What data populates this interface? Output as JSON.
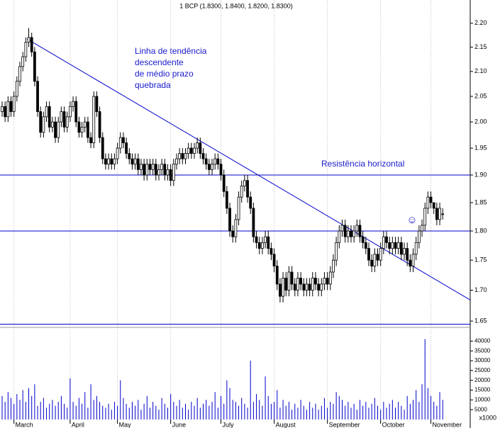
{
  "chart_data": {
    "type": "candlestick",
    "title": "1 BCP (1.8300, 1.8400, 1.8200, 1.8300)",
    "annotations": [
      "Linha de tendência",
      "descendente",
      "de médio prazo",
      "quebrada",
      "Resistência horizontal",
      "☺"
    ],
    "volume_unit_label": "x1000",
    "log_scale": true,
    "up_color": "#ffffff",
    "down_color": "#000000",
    "line_color": "#0000cc",
    "xlim": [
      -0.72,
      158.3
    ],
    "xticks": [
      {
        "value": 4,
        "label": "March"
      },
      {
        "value": 23,
        "label": "April"
      },
      {
        "value": 39,
        "label": "May"
      },
      {
        "value": 57,
        "label": "June"
      },
      {
        "value": 74,
        "label": "July"
      },
      {
        "value": 92,
        "label": "August"
      },
      {
        "value": 110,
        "label": "September"
      },
      {
        "value": 128,
        "label": "October"
      },
      {
        "value": 145,
        "label": "November"
      }
    ],
    "ylim": [
      1.64,
      2.25
    ],
    "yticks": [
      {
        "value": 1.65,
        "label": "1.65"
      },
      {
        "value": 1.7,
        "label": "1.70"
      },
      {
        "value": 1.75,
        "label": "1.75"
      },
      {
        "value": 1.8,
        "label": "1.80"
      },
      {
        "value": 1.85,
        "label": "1.85"
      },
      {
        "value": 1.9,
        "label": "1.90"
      },
      {
        "value": 1.95,
        "label": "1.95"
      },
      {
        "value": 2.0,
        "label": "2.00"
      },
      {
        "value": 2.05,
        "label": "2.05"
      },
      {
        "value": 2.1,
        "label": "2.10"
      },
      {
        "value": 2.15,
        "label": "2.15"
      },
      {
        "value": 2.2,
        "label": "2.20"
      }
    ],
    "y2lim": [
      0,
      47000
    ],
    "y2ticks": [
      5000,
      10000,
      15000,
      20000,
      25000,
      30000,
      35000,
      40000
    ],
    "hlines": [
      1.9,
      1.8,
      1.645
    ],
    "trendline": [
      [
        8.4,
        2.167
      ],
      [
        158.3,
        1.684
      ]
    ],
    "open": [
      2.02,
      2.03,
      2.01,
      2.04,
      2.02,
      2.05,
      2.08,
      2.11,
      2.13,
      2.16,
      2.17,
      2.14,
      2.08,
      2.02,
      1.98,
      2.01,
      2.03,
      1.99,
      2.0,
      1.97,
      2.0,
      2.02,
      1.99,
      2.01,
      2.03,
      2.04,
      2.0,
      1.98,
      1.99,
      2.0,
      1.97,
      1.96,
      2.05,
      2.02,
      1.97,
      1.93,
      1.92,
      1.93,
      1.92,
      1.93,
      1.95,
      1.97,
      1.96,
      1.94,
      1.93,
      1.92,
      1.93,
      1.91,
      1.92,
      1.9,
      1.92,
      1.91,
      1.92,
      1.9,
      1.91,
      1.92,
      1.9,
      1.91,
      1.89,
      1.92,
      1.93,
      1.94,
      1.93,
      1.94,
      1.95,
      1.94,
      1.95,
      1.96,
      1.94,
      1.93,
      1.92,
      1.91,
      1.92,
      1.93,
      1.92,
      1.9,
      1.87,
      1.84,
      1.8,
      1.79,
      1.82,
      1.86,
      1.88,
      1.89,
      1.86,
      1.84,
      1.79,
      1.78,
      1.77,
      1.78,
      1.79,
      1.77,
      1.76,
      1.74,
      1.71,
      1.69,
      1.72,
      1.7,
      1.73,
      1.71,
      1.7,
      1.72,
      1.71,
      1.7,
      1.71,
      1.7,
      1.72,
      1.71,
      1.7,
      1.71,
      1.72,
      1.71,
      1.73,
      1.75,
      1.78,
      1.8,
      1.81,
      1.79,
      1.8,
      1.79,
      1.8,
      1.81,
      1.79,
      1.78,
      1.77,
      1.75,
      1.74,
      1.76,
      1.75,
      1.77,
      1.79,
      1.78,
      1.77,
      1.78,
      1.77,
      1.78,
      1.76,
      1.77,
      1.75,
      1.74,
      1.76,
      1.78,
      1.8,
      1.81,
      1.84,
      1.86,
      1.85,
      1.84,
      1.82,
      1.83
    ],
    "high": [
      2.04,
      2.04,
      2.05,
      2.05,
      2.06,
      2.09,
      2.12,
      2.14,
      2.17,
      2.19,
      2.18,
      2.15,
      2.09,
      2.03,
      2.02,
      2.04,
      2.04,
      2.01,
      2.01,
      2.01,
      2.03,
      2.03,
      2.02,
      2.04,
      2.05,
      2.05,
      2.01,
      2.0,
      2.01,
      2.01,
      1.98,
      2.06,
      2.06,
      2.03,
      1.98,
      1.94,
      1.94,
      1.94,
      1.94,
      1.96,
      1.98,
      1.98,
      1.97,
      1.95,
      1.94,
      1.94,
      1.94,
      1.93,
      1.93,
      1.93,
      1.93,
      1.93,
      1.93,
      1.92,
      1.93,
      1.93,
      1.92,
      1.92,
      1.93,
      1.94,
      1.95,
      1.95,
      1.95,
      1.96,
      1.96,
      1.96,
      1.97,
      1.97,
      1.95,
      1.94,
      1.93,
      1.93,
      1.94,
      1.94,
      1.93,
      1.91,
      1.88,
      1.85,
      1.81,
      1.83,
      1.87,
      1.89,
      1.9,
      1.9,
      1.87,
      1.85,
      1.8,
      1.79,
      1.79,
      1.8,
      1.8,
      1.78,
      1.77,
      1.75,
      1.72,
      1.73,
      1.73,
      1.74,
      1.74,
      1.72,
      1.73,
      1.73,
      1.72,
      1.72,
      1.72,
      1.73,
      1.73,
      1.72,
      1.72,
      1.73,
      1.73,
      1.74,
      1.76,
      1.79,
      1.81,
      1.82,
      1.82,
      1.81,
      1.81,
      1.81,
      1.82,
      1.82,
      1.8,
      1.79,
      1.78,
      1.76,
      1.77,
      1.77,
      1.78,
      1.8,
      1.8,
      1.79,
      1.79,
      1.79,
      1.79,
      1.79,
      1.78,
      1.78,
      1.76,
      1.77,
      1.79,
      1.81,
      1.82,
      1.85,
      1.87,
      1.87,
      1.85,
      1.85,
      1.85,
      1.84
    ],
    "low": [
      2.01,
      2.0,
      2.0,
      2.01,
      2.01,
      2.04,
      2.07,
      2.1,
      2.12,
      2.15,
      2.13,
      2.07,
      2.01,
      1.97,
      1.97,
      2.0,
      1.98,
      1.98,
      1.96,
      1.96,
      1.99,
      1.98,
      1.98,
      2.0,
      2.02,
      1.99,
      1.97,
      1.97,
      1.98,
      1.96,
      1.95,
      1.95,
      2.01,
      1.96,
      1.92,
      1.91,
      1.91,
      1.91,
      1.91,
      1.92,
      1.94,
      1.95,
      1.93,
      1.92,
      1.91,
      1.91,
      1.9,
      1.9,
      1.89,
      1.89,
      1.9,
      1.9,
      1.89,
      1.89,
      1.9,
      1.89,
      1.89,
      1.88,
      1.88,
      1.91,
      1.92,
      1.92,
      1.92,
      1.93,
      1.93,
      1.93,
      1.94,
      1.93,
      1.92,
      1.91,
      1.9,
      1.9,
      1.91,
      1.91,
      1.89,
      1.86,
      1.83,
      1.79,
      1.78,
      1.78,
      1.81,
      1.85,
      1.87,
      1.85,
      1.83,
      1.78,
      1.77,
      1.76,
      1.76,
      1.77,
      1.76,
      1.75,
      1.73,
      1.7,
      1.68,
      1.68,
      1.69,
      1.69,
      1.7,
      1.69,
      1.69,
      1.7,
      1.69,
      1.69,
      1.69,
      1.69,
      1.7,
      1.69,
      1.69,
      1.7,
      1.7,
      1.7,
      1.72,
      1.74,
      1.77,
      1.79,
      1.78,
      1.78,
      1.78,
      1.78,
      1.79,
      1.78,
      1.77,
      1.76,
      1.74,
      1.73,
      1.73,
      1.74,
      1.74,
      1.76,
      1.77,
      1.76,
      1.76,
      1.76,
      1.76,
      1.75,
      1.75,
      1.74,
      1.73,
      1.73,
      1.75,
      1.77,
      1.79,
      1.8,
      1.83,
      1.84,
      1.83,
      1.81,
      1.81,
      1.82
    ],
    "close": [
      2.03,
      2.01,
      2.04,
      2.02,
      2.05,
      2.08,
      2.11,
      2.13,
      2.16,
      2.17,
      2.14,
      2.08,
      2.02,
      1.98,
      2.01,
      2.03,
      1.99,
      2.0,
      1.97,
      2.0,
      2.02,
      1.99,
      2.01,
      2.03,
      2.04,
      2.0,
      1.98,
      1.99,
      2.0,
      1.97,
      1.96,
      2.05,
      2.02,
      1.97,
      1.93,
      1.92,
      1.93,
      1.92,
      1.93,
      1.95,
      1.97,
      1.96,
      1.94,
      1.93,
      1.92,
      1.93,
      1.91,
      1.92,
      1.9,
      1.92,
      1.91,
      1.92,
      1.9,
      1.91,
      1.92,
      1.9,
      1.91,
      1.89,
      1.92,
      1.93,
      1.94,
      1.93,
      1.94,
      1.95,
      1.94,
      1.95,
      1.96,
      1.94,
      1.93,
      1.92,
      1.91,
      1.92,
      1.93,
      1.92,
      1.9,
      1.87,
      1.84,
      1.8,
      1.79,
      1.82,
      1.86,
      1.88,
      1.89,
      1.86,
      1.84,
      1.79,
      1.78,
      1.77,
      1.78,
      1.79,
      1.77,
      1.76,
      1.74,
      1.71,
      1.69,
      1.72,
      1.7,
      1.73,
      1.71,
      1.7,
      1.72,
      1.71,
      1.7,
      1.71,
      1.7,
      1.72,
      1.71,
      1.7,
      1.71,
      1.72,
      1.71,
      1.73,
      1.75,
      1.78,
      1.8,
      1.81,
      1.79,
      1.8,
      1.79,
      1.8,
      1.81,
      1.79,
      1.78,
      1.77,
      1.75,
      1.74,
      1.76,
      1.75,
      1.77,
      1.79,
      1.78,
      1.77,
      1.78,
      1.77,
      1.78,
      1.76,
      1.77,
      1.75,
      1.74,
      1.76,
      1.78,
      1.8,
      1.81,
      1.84,
      1.86,
      1.85,
      1.84,
      1.82,
      1.84,
      1.83
    ],
    "volume": [
      12000,
      9000,
      14000,
      11000,
      8000,
      13000,
      10000,
      15000,
      9000,
      16000,
      12000,
      18000,
      7000,
      9000,
      11000,
      6000,
      8000,
      10000,
      7000,
      9000,
      12000,
      8000,
      6000,
      21000,
      9000,
      7000,
      11000,
      8000,
      14000,
      6000,
      18000,
      10000,
      12000,
      9000,
      7000,
      6000,
      8000,
      5000,
      9000,
      7000,
      20000,
      11000,
      8000,
      6000,
      9000,
      7000,
      10000,
      5000,
      8000,
      12000,
      6000,
      9000,
      7000,
      5000,
      11000,
      8000,
      6000,
      13000,
      9000,
      7000,
      10000,
      6000,
      8000,
      5000,
      9000,
      7000,
      11000,
      6000,
      8000,
      10000,
      7000,
      9000,
      14000,
      6000,
      12000,
      8000,
      20000,
      16000,
      10000,
      9000,
      7000,
      11000,
      8000,
      6000,
      30000,
      9000,
      13000,
      10000,
      7000,
      22000,
      12000,
      8000,
      9000,
      15000,
      6000,
      10000,
      7000,
      9000,
      5000,
      8000,
      6000,
      10000,
      7000,
      5000,
      9000,
      6000,
      8000,
      5000,
      7000,
      11000,
      6000,
      9000,
      8000,
      14000,
      12000,
      10000,
      7000,
      9000,
      6000,
      8000,
      5000,
      10000,
      7000,
      9000,
      6000,
      8000,
      11000,
      7000,
      5000,
      9000,
      6000,
      8000,
      10000,
      6000,
      9000,
      7000,
      5000,
      12000,
      8000,
      10000,
      15000,
      9000,
      18000,
      41000,
      16000,
      12000,
      9000,
      7000,
      14000,
      10000
    ]
  }
}
